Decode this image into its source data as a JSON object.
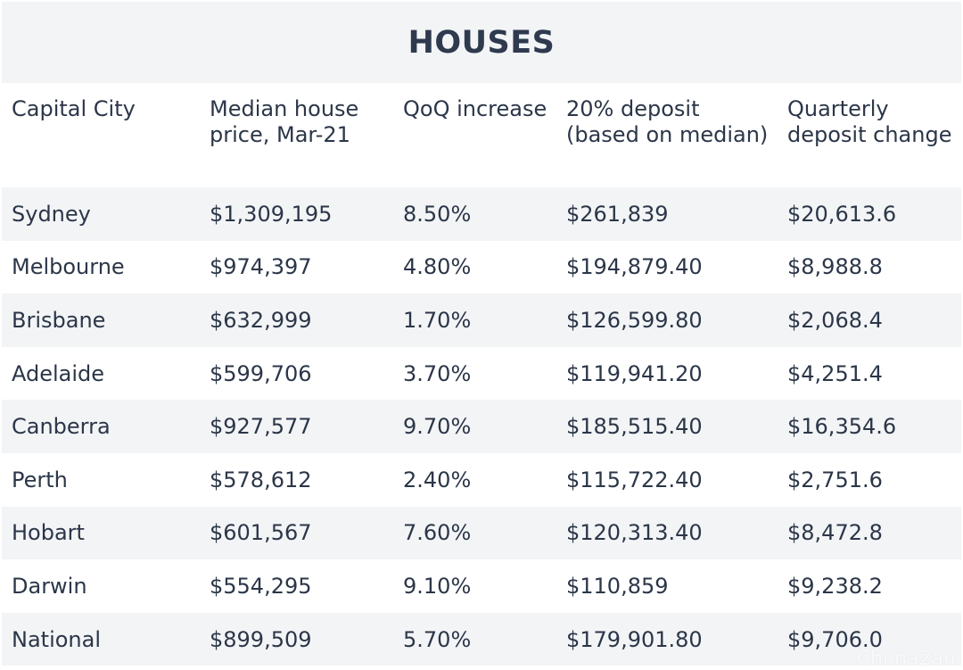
{
  "title": "HOUSES",
  "headers": [
    "Capital City",
    "Median house price, Mar-21",
    "QoQ increase",
    "20% deposit (based on median)",
    "Quarterly deposit change"
  ],
  "rows": [
    [
      "Sydney",
      "$1,309,195",
      "8.50%",
      "$261,839",
      "$20,613.6"
    ],
    [
      "Melbourne",
      "$974,397",
      "4.80%",
      "$194,879.40",
      "$8,988.8"
    ],
    [
      "Brisbane",
      "$632,999",
      "1.70%",
      "$126,599.80",
      "$2,068.4"
    ],
    [
      "Adelaide",
      "$599,706",
      "3.70%",
      "$119,941.20",
      "$4,251.4"
    ],
    [
      "Canberra",
      "$927,577",
      "9.70%",
      "$185,515.40",
      "$16,354.6"
    ],
    [
      "Perth",
      "$578,612",
      "2.40%",
      "$115,722.40",
      "$2,751.6"
    ],
    [
      "Hobart",
      "$601,567",
      "7.60%",
      "$120,313.40",
      "$8,472.8"
    ],
    [
      "Darwin",
      "$554,295",
      "9.10%",
      "$110,859",
      "$9,238.2"
    ],
    [
      "National",
      "$899,509",
      "5.70%",
      "$179,901.80",
      "$9,706.0"
    ]
  ],
  "watermark": "Chi.na2au",
  "colors": {
    "text": "#2b3648",
    "title": "#2f3a4f",
    "shade": "#f3f4f6"
  }
}
